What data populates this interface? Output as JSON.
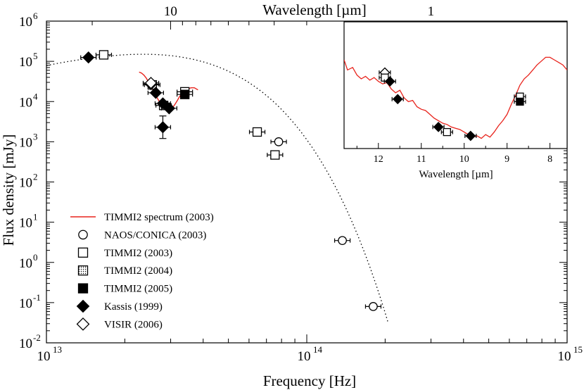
{
  "chart_data": [
    {
      "type": "scatter",
      "xlabel": "Frequency [Hz]",
      "ylabel": "Flux density [mJy]",
      "top_axis_label": "Wavelength [µm]",
      "xscale": "log",
      "yscale": "log",
      "xlim": [
        10000000000000.0,
        1000000000000000.0
      ],
      "ylim": [
        0.01,
        1000000.0
      ],
      "x_ticks": [
        {
          "value": 10000000000000.0,
          "base": "10",
          "exp": "13"
        },
        {
          "value": 100000000000000.0,
          "base": "10",
          "exp": "14"
        },
        {
          "value": 1000000000000000.0,
          "base": "10",
          "exp": "15"
        }
      ],
      "y_ticks": [
        {
          "value": 0.01,
          "base": "10",
          "exp": "-2"
        },
        {
          "value": 0.1,
          "base": "10",
          "exp": "-1"
        },
        {
          "value": 1,
          "base": "10",
          "exp": "0"
        },
        {
          "value": 10,
          "base": "10",
          "exp": "1"
        },
        {
          "value": 100,
          "base": "10",
          "exp": "2"
        },
        {
          "value": 1000,
          "base": "10",
          "exp": "3"
        },
        {
          "value": 10000,
          "base": "10",
          "exp": "4"
        },
        {
          "value": 100000,
          "base": "10",
          "exp": "5"
        },
        {
          "value": 1000000,
          "base": "10",
          "exp": "6"
        }
      ],
      "top_ticks": [
        {
          "value": 10,
          "label": "10"
        },
        {
          "value": 1,
          "label": "1"
        }
      ],
      "legend_position": "bottom-left",
      "series": [
        {
          "name": "TIMMI2 spectrum (2003)",
          "marker": "line",
          "color": "#e8231c",
          "points": [
            [
              22700000000000.0,
              54000.0
            ],
            [
              23200000000000.0,
              51000.0
            ],
            [
              23700000000000.0,
              45000.0
            ],
            [
              24200000000000.0,
              38000.0
            ],
            [
              24700000000000.0,
              30000.0
            ],
            [
              25200000000000.0,
              24000.0
            ],
            [
              25700000000000.0,
              19000.0
            ],
            [
              26200000000000.0,
              15000.0
            ],
            [
              26700000000000.0,
              12000.0
            ],
            [
              27200000000000.0,
              9800.0
            ],
            [
              27700000000000.0,
              8500.0
            ],
            [
              28200000000000.0,
              7600.0
            ],
            [
              28700000000000.0,
              7100.0
            ],
            [
              29200000000000.0,
              6700.0
            ],
            [
              29700000000000.0,
              6500.0
            ],
            [
              30200000000000.0,
              6700.0
            ],
            [
              30700000000000.0,
              7400.0
            ],
            [
              31200000000000.0,
              8600.0
            ],
            [
              31800000000000.0,
              10500.0
            ],
            [
              32400000000000.0,
              13000.0
            ],
            [
              33000000000000.0,
              15500.0
            ],
            [
              33600000000000.0,
              18000.0
            ],
            [
              34200000000000.0,
              20000.0
            ],
            [
              35000000000000.0,
              21000.0
            ],
            [
              36000000000000.0,
              22000.0
            ],
            [
              37000000000000.0,
              22000.0
            ],
            [
              38200000000000.0,
              19500.0
            ]
          ]
        },
        {
          "name": "NAOS/CONICA (2003)",
          "marker": "circle-open",
          "points": [
            [
              78000000000000.0,
              1000
            ],
            [
              137000000000000.0,
              3.5
            ],
            [
              180000000000000.0,
              0.08
            ]
          ]
        },
        {
          "name": "TIMMI2 (2003)",
          "marker": "square-open",
          "points": [
            [
              16600000000000.0,
              145000.0
            ],
            [
              25500000000000.0,
              26000.0
            ],
            [
              28200000000000.0,
              8000
            ],
            [
              34000000000000.0,
              17500.0
            ],
            [
              64500000000000.0,
              1750
            ],
            [
              75500000000000.0,
              470
            ]
          ]
        },
        {
          "name": "TIMMI2 (2004)",
          "marker": "square-dotted",
          "points": []
        },
        {
          "name": "TIMMI2 (2005)",
          "marker": "square-filled",
          "points": [
            [
              34000000000000.0,
              15000.0
            ]
          ]
        },
        {
          "name": "Kassis (1999)",
          "marker": "diamond-filled",
          "points": [
            [
              14500000000000.0,
              125000.0
            ],
            [
              25200000000000.0,
              27000.0
            ],
            [
              26300000000000.0,
              16500.0
            ],
            [
              28000000000000.0,
              9000
            ],
            [
              29600000000000.0,
              6800
            ],
            [
              28000000000000.0,
              2300
            ]
          ]
        },
        {
          "name": "VISIR (2006)",
          "marker": "diamond-open",
          "points": [
            [
              25200000000000.0,
              29000.0
            ]
          ]
        }
      ]
    },
    {
      "type": "scatter",
      "xlabel": "Wavelength [µm]",
      "xlim": [
        12.8,
        7.6
      ],
      "x_ticks": [
        12,
        11,
        10,
        9,
        8
      ],
      "spectrum": [
        [
          12.8,
          70
        ],
        [
          12.72,
          62
        ],
        [
          12.6,
          64
        ],
        [
          12.5,
          58
        ],
        [
          12.4,
          55
        ],
        [
          12.3,
          57
        ],
        [
          12.2,
          54
        ],
        [
          12.1,
          56
        ],
        [
          12.0,
          53
        ],
        [
          11.9,
          51
        ],
        [
          11.8,
          52
        ],
        [
          11.7,
          47
        ],
        [
          11.6,
          44
        ],
        [
          11.5,
          46
        ],
        [
          11.4,
          40
        ],
        [
          11.3,
          37
        ],
        [
          11.2,
          38
        ],
        [
          11.1,
          33
        ],
        [
          11.0,
          31
        ],
        [
          10.9,
          30
        ],
        [
          10.8,
          27
        ],
        [
          10.7,
          24
        ],
        [
          10.6,
          22
        ],
        [
          10.5,
          20
        ],
        [
          10.4,
          19
        ],
        [
          10.3,
          17
        ],
        [
          10.2,
          16
        ],
        [
          10.1,
          15
        ],
        [
          10.0,
          13
        ],
        [
          9.9,
          11
        ],
        [
          9.8,
          9
        ],
        [
          9.7,
          10
        ],
        [
          9.6,
          8
        ],
        [
          9.5,
          11
        ],
        [
          9.4,
          9
        ],
        [
          9.3,
          13
        ],
        [
          9.2,
          18
        ],
        [
          9.1,
          22
        ],
        [
          9.0,
          27
        ],
        [
          8.9,
          35
        ],
        [
          8.8,
          42
        ],
        [
          8.7,
          50
        ],
        [
          8.6,
          55
        ],
        [
          8.5,
          58
        ],
        [
          8.4,
          62
        ],
        [
          8.3,
          66
        ],
        [
          8.2,
          69
        ],
        [
          8.1,
          72
        ],
        [
          8.0,
          72
        ],
        [
          7.9,
          70
        ],
        [
          7.8,
          68
        ],
        [
          7.7,
          66
        ],
        [
          7.6,
          62
        ]
      ],
      "points": [
        {
          "series": "VISIR (2006)",
          "x": 11.85,
          "y": 60
        },
        {
          "series": "TIMMI2 (2003)",
          "x": 11.85,
          "y": 56
        },
        {
          "series": "Kassis (1999)",
          "x": 11.73,
          "y": 53
        },
        {
          "series": "Kassis (1999)",
          "x": 11.55,
          "y": 39
        },
        {
          "series": "Kassis (1999)",
          "x": 10.6,
          "y": 17
        },
        {
          "series": "TIMMI2 (2003)",
          "x": 10.4,
          "y": 13
        },
        {
          "series": "Kassis (1999)",
          "x": 9.85,
          "y": 10
        },
        {
          "series": "TIMMI2 (2003)",
          "x": 8.7,
          "y": 41
        },
        {
          "series": "TIMMI2 (2005)",
          "x": 8.7,
          "y": 37
        }
      ]
    }
  ]
}
